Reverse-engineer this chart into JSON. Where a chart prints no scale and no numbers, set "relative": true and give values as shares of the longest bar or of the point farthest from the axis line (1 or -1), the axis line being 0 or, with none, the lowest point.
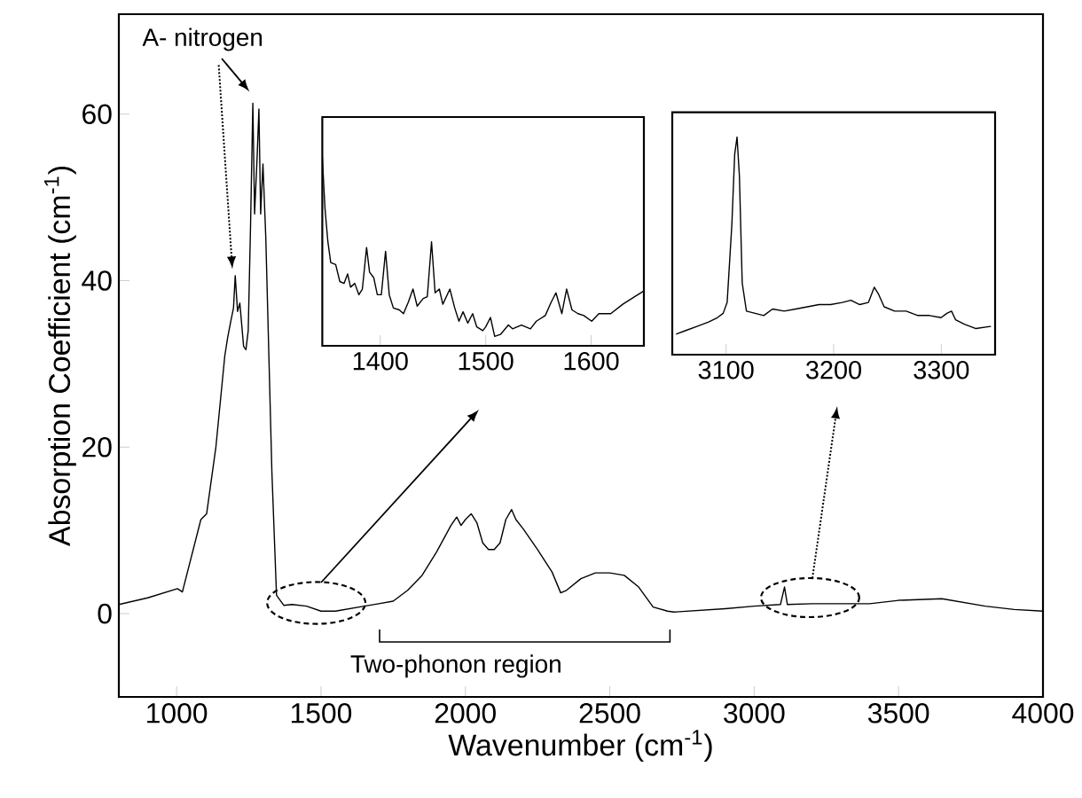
{
  "chart_data": [
    {
      "type": "line",
      "xlabel": "Wavenumber (cm$^{-1}$)",
      "ylabel": "Absorption Coefficient (cm$^{-1}$)",
      "color": "#000000",
      "x": [
        800,
        900,
        1003,
        1020,
        1084,
        1104,
        1136,
        1167,
        1177,
        1187,
        1197,
        1203,
        1211,
        1219,
        1232,
        1240,
        1248,
        1256,
        1264,
        1270,
        1279,
        1285,
        1291,
        1299,
        1309,
        1330,
        1346,
        1371,
        1400,
        1450,
        1500,
        1550,
        1600,
        1650,
        1700,
        1750,
        1800,
        1850,
        1900,
        1950,
        1970,
        1985,
        2000,
        2020,
        2040,
        2060,
        2080,
        2100,
        2120,
        2140,
        2160,
        2175,
        2200,
        2250,
        2300,
        2330,
        2350,
        2400,
        2450,
        2500,
        2550,
        2600,
        2650,
        2700,
        2722,
        2900,
        3000,
        3091,
        3105,
        3115,
        3200,
        3300,
        3400,
        3500,
        3650,
        3800,
        3900,
        4000
      ],
      "values": [
        1.1,
        1.9,
        3.0,
        2.6,
        11.3,
        12.0,
        20,
        31,
        33.2,
        35,
        36.7,
        40.6,
        36.3,
        37.3,
        32.1,
        31.7,
        34,
        46.5,
        61.3,
        48,
        55,
        60.6,
        48,
        54,
        45,
        17,
        2.2,
        1.0,
        1.1,
        0.9,
        0.3,
        0.3,
        0.6,
        0.9,
        1.2,
        1.5,
        2.8,
        4.6,
        7.4,
        10.6,
        11.6,
        10.6,
        11.3,
        12.0,
        10.9,
        8.5,
        7.7,
        7.7,
        8.5,
        11.3,
        12.5,
        11.3,
        10.2,
        7.7,
        5,
        2.5,
        2.8,
        4.2,
        4.9,
        4.9,
        4.6,
        3.2,
        0.8,
        0.3,
        0.2,
        0.6,
        0.9,
        1.1,
        3.2,
        1.1,
        1.2,
        1.2,
        1.2,
        1.6,
        1.8,
        0.9,
        0.5,
        0.3
      ],
      "xlim": [
        800,
        4000
      ],
      "xticks": [
        1000,
        1500,
        2000,
        2500,
        3000,
        3500,
        4000
      ],
      "ylim": [
        -10,
        72
      ],
      "yticks": [
        0,
        20,
        40,
        60
      ],
      "annotations": [
        "A- nitrogen",
        "Two-phonon region"
      ]
    },
    {
      "type": "line",
      "relative": true,
      "color": "#000000",
      "tick_labels": "x",
      "x": [
        1345,
        1347.5,
        1350.3,
        1353,
        1357.7,
        1361.6,
        1365.6,
        1369,
        1371.8,
        1375.8,
        1379.7,
        1383,
        1387,
        1389.8,
        1393.8,
        1397.2,
        1401,
        1405,
        1408.5,
        1412.4,
        1418,
        1422,
        1426.5,
        1431,
        1435,
        1440.7,
        1444.6,
        1448.6,
        1452,
        1456,
        1459.3,
        1466,
        1470.6,
        1474.6,
        1478.5,
        1483,
        1487.6,
        1491.5,
        1497.2,
        1500,
        1504.5,
        1508.5,
        1514,
        1521.5,
        1525.4,
        1533.9,
        1542.4,
        1548,
        1556.5,
        1562,
        1566.6,
        1572.2,
        1576.7,
        1581.8,
        1587.5,
        1593,
        1600.5,
        1607.3,
        1618.6,
        1630,
        1641.2,
        1650
      ],
      "values": [
        1.0,
        0.73,
        0.55,
        0.44,
        0.43,
        0.34,
        0.33,
        0.38,
        0.31,
        0.33,
        0.27,
        0.3,
        0.52,
        0.39,
        0.36,
        0.27,
        0.27,
        0.5,
        0.27,
        0.2,
        0.19,
        0.17,
        0.23,
        0.3,
        0.21,
        0.25,
        0.26,
        0.55,
        0.28,
        0.3,
        0.22,
        0.3,
        0.2,
        0.13,
        0.18,
        0.12,
        0.17,
        0.1,
        0.08,
        0.1,
        0.15,
        0.05,
        0.06,
        0.11,
        0.09,
        0.11,
        0.09,
        0.13,
        0.16,
        0.23,
        0.28,
        0.17,
        0.3,
        0.19,
        0.17,
        0.16,
        0.13,
        0.17,
        0.17,
        0.22,
        0.26,
        0.29
      ],
      "xlim": [
        1345,
        1650
      ],
      "xticks": [
        1400,
        1500,
        1600
      ]
    },
    {
      "type": "line",
      "relative": true,
      "color": "#000000",
      "tick_labels": "x",
      "x": [
        3054,
        3062,
        3073,
        3083.8,
        3091.9,
        3097.3,
        3101,
        3105.4,
        3108,
        3110.2,
        3112.4,
        3115,
        3118.9,
        3127,
        3135,
        3143.2,
        3154,
        3164.8,
        3175.6,
        3186.4,
        3197.2,
        3208,
        3216,
        3224.2,
        3232.3,
        3237.7,
        3241.5,
        3246.9,
        3256.6,
        3267.4,
        3278.2,
        3289,
        3299.8,
        3305.2,
        3309.5,
        3313.3,
        3321.4,
        3332.2,
        3345.7
      ],
      "values": [
        0.095,
        0.11,
        0.13,
        0.15,
        0.17,
        0.19,
        0.24,
        0.6,
        0.92,
        1.0,
        0.82,
        0.33,
        0.2,
        0.19,
        0.18,
        0.21,
        0.2,
        0.21,
        0.22,
        0.23,
        0.23,
        0.24,
        0.25,
        0.23,
        0.24,
        0.31,
        0.28,
        0.22,
        0.2,
        0.2,
        0.18,
        0.18,
        0.17,
        0.19,
        0.2,
        0.16,
        0.14,
        0.12,
        0.13
      ],
      "xlim": [
        3050,
        3350
      ],
      "xticks": [
        3100,
        3200,
        3300
      ]
    }
  ]
}
